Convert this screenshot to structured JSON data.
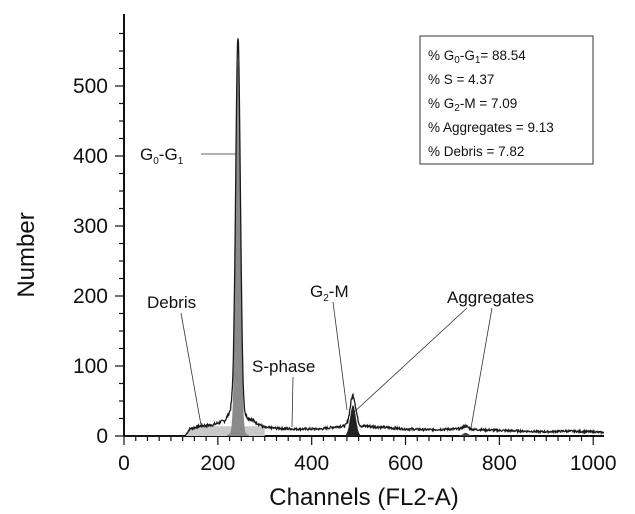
{
  "chart_data": {
    "type": "area",
    "xlabel": "Channels (FL2-A)",
    "ylabel": "Number",
    "xlim": [
      0,
      1023
    ],
    "ylim": [
      0,
      600
    ],
    "x_ticks": [
      "0",
      "200",
      "400",
      "600",
      "800",
      "1000"
    ],
    "y_ticks": [
      "0",
      "100",
      "200",
      "300",
      "400",
      "500"
    ],
    "peaks": [
      {
        "label": "G0-G1",
        "channel": 243,
        "count": 570
      },
      {
        "label": "G2-M",
        "channel": 488,
        "count": 58
      },
      {
        "label": "Aggregates",
        "channel": 728,
        "count": 14
      }
    ],
    "baseline": [
      [
        0,
        0
      ],
      [
        130,
        0
      ],
      [
        140,
        10
      ],
      [
        160,
        14
      ],
      [
        190,
        16
      ],
      [
        215,
        22
      ],
      [
        230,
        40
      ],
      [
        300,
        12
      ],
      [
        360,
        10
      ],
      [
        420,
        10
      ],
      [
        460,
        14
      ],
      [
        520,
        14
      ],
      [
        560,
        12
      ],
      [
        600,
        10
      ],
      [
        650,
        9
      ],
      [
        700,
        10
      ],
      [
        760,
        9
      ],
      [
        800,
        8
      ],
      [
        850,
        7
      ],
      [
        900,
        6
      ],
      [
        940,
        7
      ],
      [
        1000,
        6
      ],
      [
        1023,
        5
      ]
    ],
    "annotations": {
      "g0g1_main": "G",
      "g0g1_sub0": "0",
      "g0g1_dash": "-G",
      "g0g1_sub1": "1",
      "debris": "Debris",
      "sphase": "S-phase",
      "g2m_main": "G",
      "g2m_sub": "2",
      "g2m_rest": "-M",
      "aggregates": "Aggregates"
    },
    "stats": {
      "g0g1_prefix": "% G",
      "g0g1_sub0": "0",
      "g0g1_mid": "-G",
      "g0g1_sub1": "1",
      "g0g1_value": "= 88.54",
      "s": "% S = 4.37",
      "g2m_prefix": "% G",
      "g2m_sub": "2",
      "g2m_value": "-M = 7.09",
      "aggregates": "% Aggregates = 9.13",
      "debris": "% Debris = 7.82"
    }
  }
}
